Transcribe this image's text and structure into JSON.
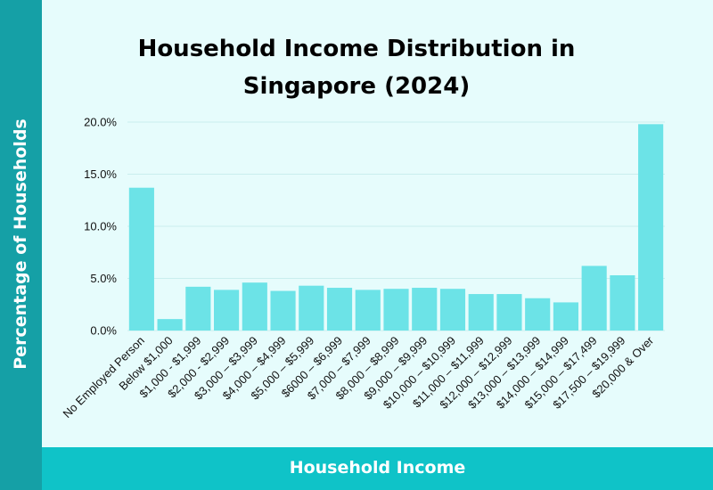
{
  "colors": {
    "bar": "#6ce3e7",
    "left_band": "#15a0a6",
    "bottom_band": "#0fc3c8",
    "background": "#e6fcfc",
    "grid": "#c9eeee"
  },
  "chart_data": {
    "type": "bar",
    "title": "Household Income Distribution in Singapore (2024)",
    "xlabel": "Household Income",
    "ylabel": "Percentage of Households",
    "ylim": [
      0,
      20
    ],
    "yticks": [
      0,
      5,
      10,
      15,
      20
    ],
    "ytick_labels": [
      "0.0%",
      "5.0%",
      "10.0%",
      "15.0%",
      "20.0%"
    ],
    "grid": true,
    "categories": [
      "No Employed Person",
      "Below $1,000",
      "$1,000 - $1,999",
      "$2,000 - $2,999",
      "$3,000 – $3,999",
      "$4,000 – $4,999",
      "$5,000 – $5,999",
      "$6000 – $6,999",
      "$7,000 – $7,999",
      "$8,000 – $8,999",
      "$9,000 – $9,999",
      "$10,000 – $10,999",
      "$11,000 – $11,999",
      "$12,000 – $12,999",
      "$13,000 – $13,999",
      "$14,000 – $14,999",
      "$15,000 – $17,499",
      "$17,500 – $19,999",
      "$20,000 & Over"
    ],
    "values": [
      13.7,
      1.1,
      4.2,
      3.9,
      4.6,
      3.8,
      4.3,
      4.1,
      3.9,
      4.0,
      4.1,
      4.0,
      3.5,
      3.5,
      3.1,
      2.7,
      6.2,
      5.3,
      19.8
    ]
  }
}
